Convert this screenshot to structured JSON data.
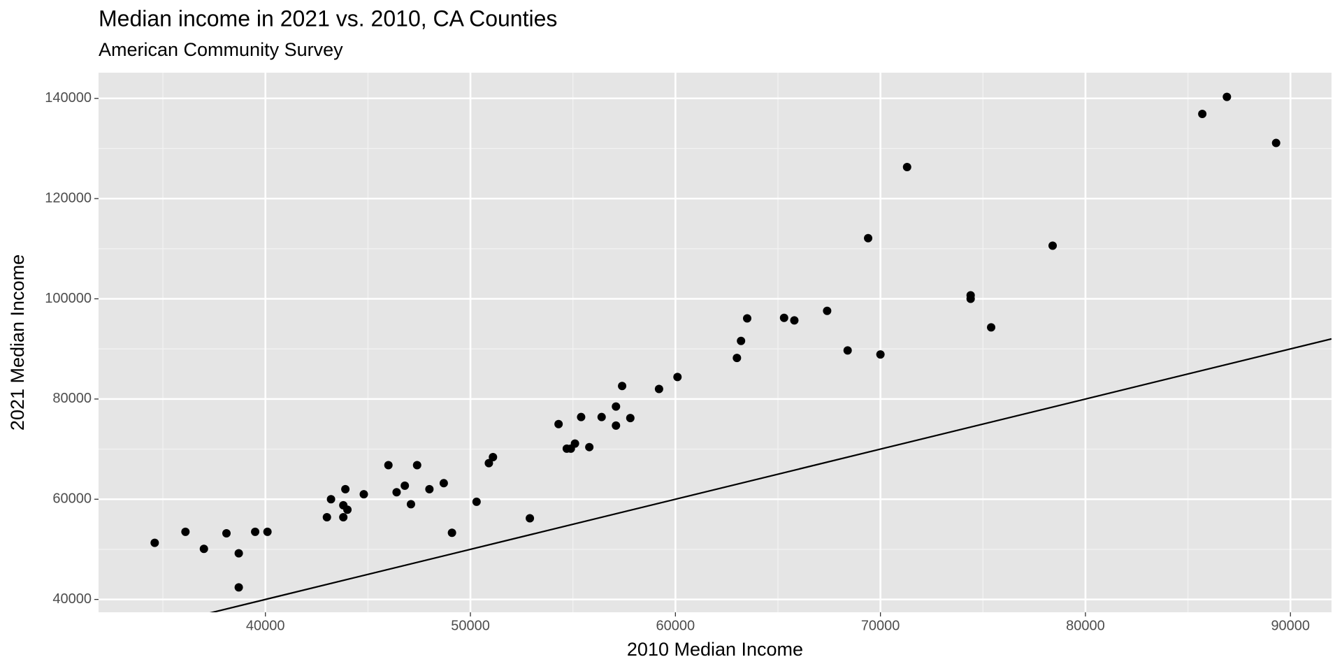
{
  "chart_data": {
    "type": "scatter",
    "title": "Median income in 2021 vs. 2010, CA Counties",
    "subtitle": "American Community Survey",
    "x_label": "2010 Median Income",
    "y_label": "2021 Median Income",
    "color": "#000000",
    "x": [
      34600,
      36100,
      37000,
      38100,
      38700,
      38700,
      39500,
      40100,
      43000,
      43200,
      43800,
      43800,
      44000,
      43900,
      44800,
      46000,
      46400,
      46800,
      47100,
      47400,
      48000,
      48700,
      49100,
      50300,
      50900,
      51100,
      52900,
      54300,
      54700,
      54900,
      55100,
      55400,
      55800,
      56400,
      57100,
      57100,
      57400,
      57800,
      59200,
      60100,
      63000,
      63200,
      63500,
      65300,
      65800,
      67400,
      68400,
      69400,
      70000,
      71300,
      74400,
      74400,
      75400,
      78400,
      85700,
      86900,
      89300
    ],
    "values": [
      51300,
      53500,
      50100,
      53200,
      49200,
      42400,
      53500,
      53500,
      56400,
      60000,
      56400,
      58800,
      57900,
      62000,
      61000,
      66800,
      61400,
      62700,
      59000,
      66800,
      62000,
      63200,
      53300,
      59500,
      67200,
      68400,
      56200,
      75000,
      70100,
      70100,
      71100,
      76400,
      70400,
      76400,
      78500,
      74700,
      82600,
      76200,
      82000,
      84400,
      88200,
      91600,
      96100,
      96200,
      95700,
      97600,
      89700,
      112100,
      88900,
      126300,
      100700,
      100000,
      94300,
      110600,
      136900,
      140300,
      131100
    ],
    "abline": {
      "slope": 1,
      "intercept": 0
    },
    "xlim": [
      31861,
      92003
    ],
    "ylim": [
      37436,
      145128
    ],
    "xticks": [
      40000,
      50000,
      60000,
      70000,
      80000,
      90000
    ],
    "yticks": [
      40000,
      60000,
      80000,
      100000,
      120000,
      140000
    ],
    "minor_xticks": [
      35000,
      45000,
      55000,
      65000,
      75000,
      85000
    ],
    "minor_yticks": [
      50000,
      70000,
      90000,
      110000,
      130000
    ],
    "grid": true
  }
}
